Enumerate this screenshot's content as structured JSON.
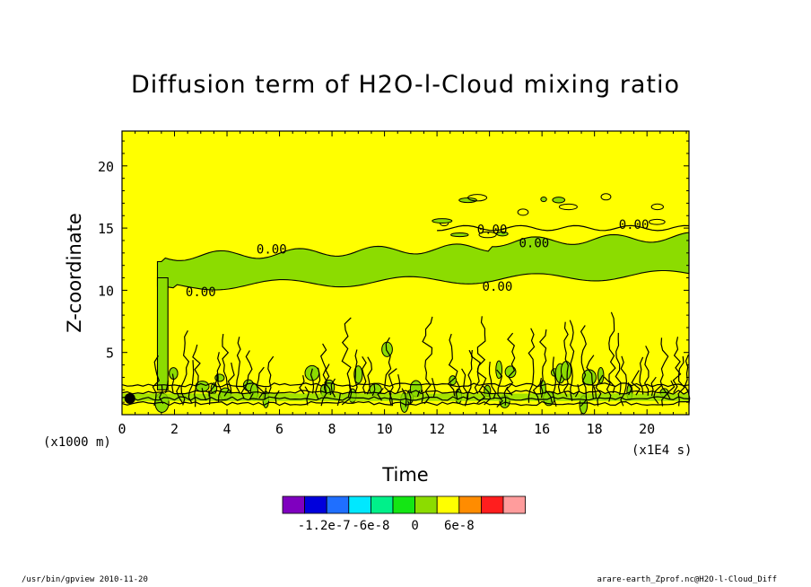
{
  "chart_data": {
    "type": "heatmap",
    "title": "Diffusion term of H2O-l-Cloud mixing ratio",
    "xlabel": "Time",
    "ylabel": "Z-coordinate",
    "x_unit": "(x1E4 s)",
    "y_unit": "(x1000 m)",
    "xlim": [
      0,
      21.6
    ],
    "ylim": [
      0,
      22.8
    ],
    "x_ticks": [
      0,
      2,
      4,
      6,
      8,
      10,
      12,
      14,
      16,
      18,
      20
    ],
    "y_ticks": [
      5,
      10,
      15,
      20
    ],
    "contour_labels": [
      {
        "text": "0.00",
        "x": 5.7,
        "y": 13.3
      },
      {
        "text": "0.00",
        "x": 3.0,
        "y": 9.9
      },
      {
        "text": "0.00",
        "x": 14.1,
        "y": 14.9
      },
      {
        "text": "0.00",
        "x": 15.7,
        "y": 13.8
      },
      {
        "text": "0.00",
        "x": 19.5,
        "y": 15.3
      },
      {
        "text": "0.00",
        "x": 14.3,
        "y": 10.3
      }
    ],
    "colorbar": {
      "colors": [
        "#7f00bf",
        "#0000dc",
        "#1f6fff",
        "#00e8ff",
        "#00f08a",
        "#14e614",
        "#8cdc00",
        "#ffff00",
        "#ff8c00",
        "#ff1e1e",
        "#ff9c9c"
      ],
      "labels": [
        "-1.2e-7",
        "-6e-8",
        "0",
        "6e-8"
      ],
      "label_index": [
        1,
        3,
        5,
        7
      ]
    },
    "background_color": "#ffff00",
    "near_zero_negative_color": "#8cdc00"
  },
  "footer": {
    "left": "/usr/bin/gpview  2010-11-20",
    "right": "arare-earth_Zprof.nc@H2O-l-Cloud_Diff"
  }
}
